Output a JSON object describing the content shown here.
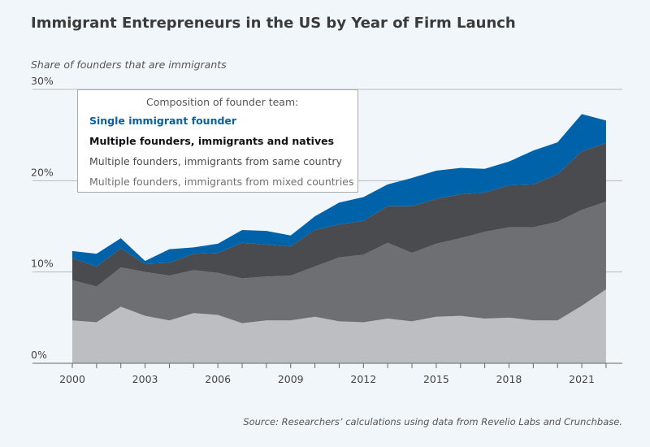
{
  "title": "Immigrant Entrepreneurs in the US by Year of Firm Launch",
  "source": "Source: Researchers’ calculations using data from Revelio Labs and Crunchbase.",
  "chart_data": {
    "type": "area",
    "stacked": true,
    "title": "Immigrant Entrepreneurs in the US by Year of Firm Launch",
    "ylabel": "Share of founders that are immigrants",
    "xlabel": "",
    "ylim": [
      0,
      30
    ],
    "yticks": [
      "0%",
      "10%",
      "20%",
      "30%"
    ],
    "ytick_values": [
      0,
      10,
      20,
      30
    ],
    "xticks": [
      "2000",
      "2003",
      "2006",
      "2009",
      "2012",
      "2015",
      "2018",
      "2021"
    ],
    "grid": "horizontal",
    "legend_title": "Composition of founder team:",
    "legend_position": "top-left",
    "x": [
      2000,
      2001,
      2002,
      2003,
      2004,
      2005,
      2006,
      2007,
      2008,
      2009,
      2010,
      2011,
      2012,
      2013,
      2014,
      2015,
      2016,
      2017,
      2018,
      2019,
      2020,
      2021,
      2022
    ],
    "series": [
      {
        "name": "Multiple founders, immigrants from mixed countries",
        "color": "#bdbec2",
        "values": [
          4.7,
          4.5,
          6.2,
          5.2,
          4.7,
          5.5,
          5.3,
          4.4,
          4.7,
          4.7,
          5.1,
          4.6,
          4.5,
          4.9,
          4.6,
          5.1,
          5.2,
          4.9,
          5.0,
          4.7,
          4.7,
          6.3,
          8.1
        ]
      },
      {
        "name": "Multiple founders, immigrants from same country",
        "color": "#6e6f73",
        "values": [
          4.4,
          3.9,
          4.3,
          4.8,
          4.9,
          4.7,
          4.6,
          4.9,
          4.8,
          4.9,
          5.5,
          7.0,
          7.4,
          8.3,
          7.5,
          8.0,
          8.5,
          9.5,
          9.9,
          10.2,
          10.8,
          10.5,
          9.6
        ]
      },
      {
        "name": "Multiple founders, immigrants and natives",
        "color": "#4a4b4f",
        "values": [
          2.4,
          2.2,
          2.1,
          0.9,
          1.4,
          1.8,
          2.2,
          3.9,
          3.5,
          3.2,
          4.0,
          3.6,
          3.7,
          4.0,
          5.1,
          4.9,
          4.8,
          4.3,
          4.6,
          4.7,
          5.2,
          6.4,
          6.4
        ]
      },
      {
        "name": "Single immigrant founder",
        "color": "#0062a8",
        "values": [
          0.8,
          1.4,
          1.1,
          0.3,
          1.5,
          0.7,
          1.0,
          1.4,
          1.5,
          1.2,
          1.5,
          2.4,
          2.6,
          2.4,
          3.1,
          3.1,
          2.9,
          2.6,
          2.6,
          3.7,
          3.5,
          4.1,
          2.5
        ]
      }
    ],
    "legend_colors": [
      "#0062a8",
      "#111111",
      "#4a4b4f",
      "#6e6f73"
    ]
  }
}
